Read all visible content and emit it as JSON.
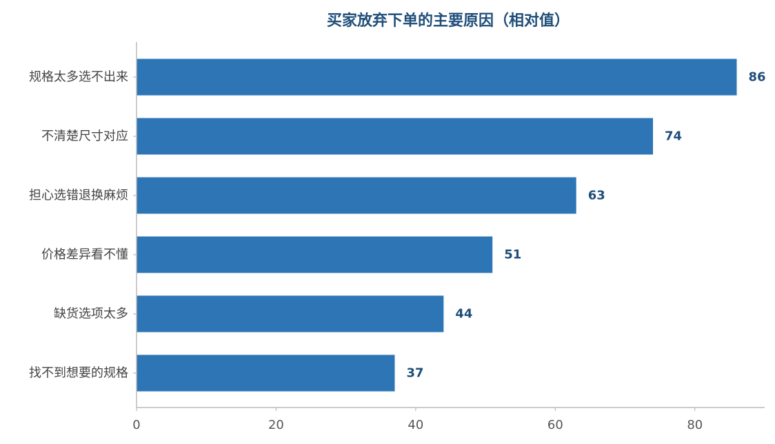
{
  "chart_data": {
    "type": "bar",
    "orientation": "horizontal",
    "title": "买家放弃下单的主要原因（相对值）",
    "categories": [
      "规格太多选不出来",
      "不清楚尺寸对应",
      "担心选错退换麻烦",
      "价格差异看不懂",
      "缺货选项太多",
      "找不到想要的规格"
    ],
    "values": [
      86,
      74,
      63,
      51,
      44,
      37
    ],
    "xlim": [
      0,
      90
    ],
    "xticks": [
      0,
      20,
      40,
      60,
      80
    ],
    "xlabel": "",
    "ylabel": "",
    "grid": false,
    "legend": "none",
    "bar_color": "#2e75b6",
    "label_color": "#1f4e79"
  }
}
